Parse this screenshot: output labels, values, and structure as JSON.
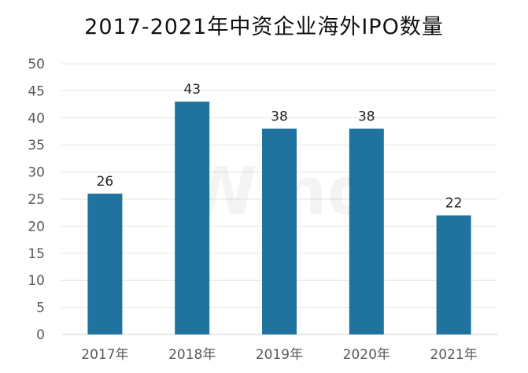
{
  "chart_data": {
    "type": "bar",
    "title": "2017-2021年中资企业海外IPO数量",
    "xlabel": "",
    "ylabel": "",
    "categories": [
      "2017年",
      "2018年",
      "2019年",
      "2020年",
      "2021年"
    ],
    "values": [
      26,
      43,
      38,
      38,
      22
    ],
    "data_labels": [
      "26",
      "43",
      "38",
      "38",
      "22"
    ],
    "ylim": [
      0,
      50
    ],
    "yticks": [
      0,
      5,
      10,
      15,
      20,
      25,
      30,
      35,
      40,
      45,
      50
    ],
    "grid": true,
    "legend": "none",
    "bar_color": "#1f739e",
    "watermark": "Wind"
  }
}
